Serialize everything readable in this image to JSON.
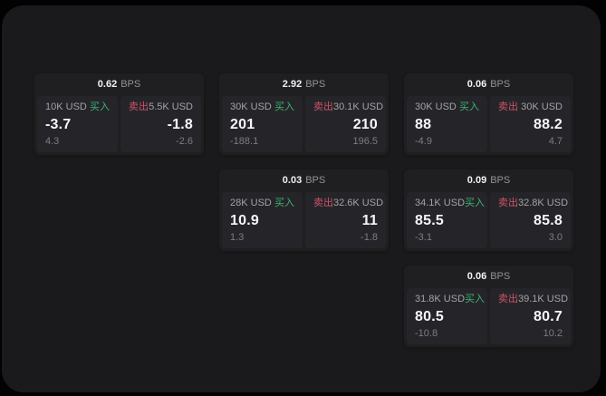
{
  "theme": {
    "outer_background": "#020202",
    "surface_background": "#1a1a1c",
    "card_background": "#1f1f22",
    "panel_background": "#252529",
    "buy_color": "#3fb274",
    "sell_color": "#cf5268",
    "value_color": "#f6f6f8",
    "muted_color": "#7c7d81"
  },
  "cards": [
    {
      "row": 1,
      "col": 1,
      "bps_value": "0.62",
      "bps_unit": "BPS",
      "buy": {
        "amount": "10K USD",
        "side_label": "买入",
        "price": "-3.7",
        "delta": "4.3"
      },
      "sell": {
        "side_label": "卖出",
        "amount": "5.5K USD",
        "price": "-1.8",
        "delta": "-2.6"
      }
    },
    {
      "row": 1,
      "col": 2,
      "bps_value": "2.92",
      "bps_unit": "BPS",
      "buy": {
        "amount": "30K USD",
        "side_label": "买入",
        "price": "201",
        "delta": "-188.1"
      },
      "sell": {
        "side_label": "卖出",
        "amount": "30.1K USD",
        "price": "210",
        "delta": "196.5"
      }
    },
    {
      "row": 1,
      "col": 3,
      "bps_value": "0.06",
      "bps_unit": "BPS",
      "buy": {
        "amount": "30K USD",
        "side_label": "买入",
        "price": "88",
        "delta": "-4.9"
      },
      "sell": {
        "side_label": "卖出",
        "amount": "30K USD",
        "price": "88.2",
        "delta": "4.7"
      }
    },
    {
      "row": 2,
      "col": 2,
      "bps_value": "0.03",
      "bps_unit": "BPS",
      "buy": {
        "amount": "28K USD",
        "side_label": "买入",
        "price": "10.9",
        "delta": "1.3"
      },
      "sell": {
        "side_label": "卖出",
        "amount": "32.6K USD",
        "price": "11",
        "delta": "-1.8"
      }
    },
    {
      "row": 2,
      "col": 3,
      "bps_value": "0.09",
      "bps_unit": "BPS",
      "buy": {
        "amount": "34.1K USD",
        "side_label": "买入",
        "price": "85.5",
        "delta": "-3.1"
      },
      "sell": {
        "side_label": "卖出",
        "amount": "32.8K USD",
        "price": "85.8",
        "delta": "3.0"
      }
    },
    {
      "row": 3,
      "col": 3,
      "bps_value": "0.06",
      "bps_unit": "BPS",
      "buy": {
        "amount": "31.8K USD",
        "side_label": "买入",
        "price": "80.5",
        "delta": "-10.8"
      },
      "sell": {
        "side_label": "卖出",
        "amount": "39.1K USD",
        "price": "80.7",
        "delta": "10.2"
      }
    }
  ]
}
